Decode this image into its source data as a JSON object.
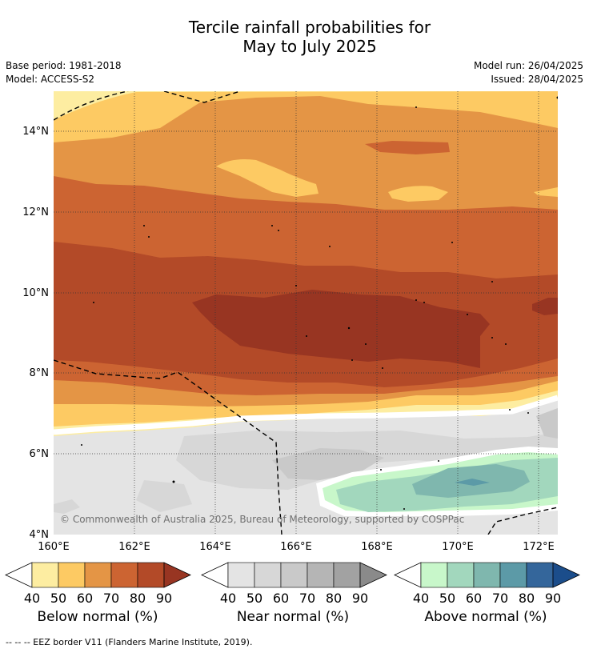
{
  "title_line1": "Tercile rainfall probabilities for",
  "title_line2": "May to July 2025",
  "base_period": "Base period: 1981-2018",
  "model": "Model: ACCESS-S2",
  "model_run": "Model run: 26/04/2025",
  "issued": "Issued: 28/04/2025",
  "map": {
    "lat_labels": [
      "14°N",
      "12°N",
      "10°N",
      "8°N",
      "6°N",
      "4°N"
    ],
    "lon_labels": [
      "160°E",
      "162°E",
      "164°E",
      "166°E",
      "168°E",
      "170°E",
      "172°E"
    ],
    "copyright": "© Commonwealth of Australia 2025, Bureau of Meteorology, supported by COSPPac"
  },
  "colorbars": [
    {
      "label": "Below normal (%)",
      "ticks": [
        "40",
        "50",
        "60",
        "70",
        "80",
        "90"
      ],
      "colors": [
        "#fdeda1",
        "#fdca63",
        "#e49545",
        "#cc6432",
        "#b34a28",
        "#983522"
      ]
    },
    {
      "label": "Near normal (%)",
      "ticks": [
        "40",
        "50",
        "60",
        "70",
        "80",
        "90"
      ],
      "colors": [
        "#e4e4e4",
        "#d7d7d7",
        "#c9c9c9",
        "#b5b5b5",
        "#a2a2a2",
        "#8a8a8a"
      ]
    },
    {
      "label": "Above normal (%)",
      "ticks": [
        "40",
        "50",
        "60",
        "70",
        "80",
        "90"
      ],
      "colors": [
        "#c8f7ca",
        "#a2d7bd",
        "#7fb7ae",
        "#5c9aa7",
        "#34669b",
        "#1b4d8b"
      ]
    }
  ],
  "footnote": "--  --  -- EEZ border V11 (Flanders Marine Institute, 2019)."
}
